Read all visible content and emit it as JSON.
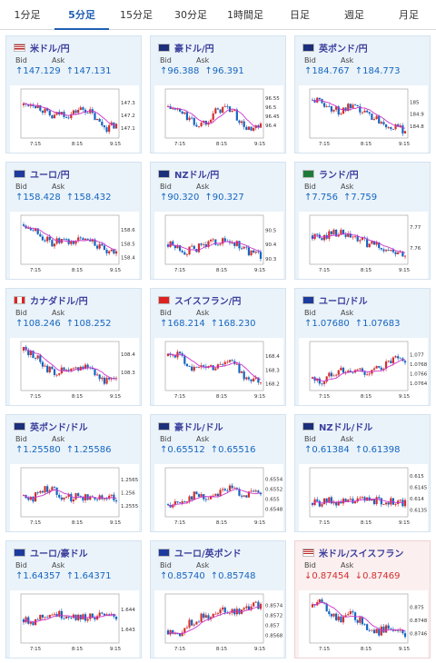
{
  "tabs": [
    "1分足",
    "5分足",
    "15分足",
    "30分足",
    "1時間足",
    "日足",
    "週足",
    "月足"
  ],
  "active_tab": 1,
  "labels": {
    "bid": "Bid",
    "ask": "Ask"
  },
  "colors": {
    "up": "#1565c0",
    "down": "#d32f2f",
    "candle_up": "#d32f2f",
    "candle_down": "#1565c0",
    "ma": "#cc33cc",
    "ma2": "#22aacc"
  },
  "x_ticks": [
    "7:15",
    "8:15",
    "9:15"
  ],
  "pairs": [
    {
      "name": "米ドル/円",
      "flag": "us-jp-flag",
      "dir": "up",
      "bid": "147.129",
      "ask": "147.131",
      "y_ticks": [
        "147.3",
        "147.2",
        "147.1"
      ],
      "y_range": [
        147.02,
        147.38
      ],
      "trend": [
        147.28,
        147.3,
        147.25,
        147.18,
        147.22,
        147.2,
        147.25,
        147.24,
        147.15,
        147.1,
        147.13
      ]
    },
    {
      "name": "豪ドル/円",
      "flag": "au-jp-flag",
      "dir": "up",
      "bid": "96.388",
      "ask": "96.391",
      "y_ticks": [
        "96.55",
        "96.5",
        "96.45",
        "96.4"
      ],
      "y_range": [
        96.33,
        96.58
      ],
      "trend": [
        96.5,
        96.48,
        96.45,
        96.4,
        96.42,
        96.47,
        96.5,
        96.48,
        96.4,
        96.37,
        96.39
      ]
    },
    {
      "name": "英ポンド/円",
      "flag": "gb-jp-flag",
      "dir": "up",
      "bid": "184.767",
      "ask": "184.773",
      "y_ticks": [
        "185",
        "184.9",
        "184.8"
      ],
      "y_range": [
        184.7,
        185.08
      ],
      "trend": [
        185.02,
        185.0,
        184.95,
        184.92,
        184.96,
        184.93,
        184.9,
        184.86,
        184.82,
        184.78,
        184.77
      ]
    },
    {
      "name": "ユーロ/円",
      "flag": "eu-jp-flag",
      "dir": "up",
      "bid": "158.428",
      "ask": "158.432",
      "y_ticks": [
        "158.6",
        "158.5",
        "158.4"
      ],
      "y_range": [
        158.35,
        158.68
      ],
      "trend": [
        158.64,
        158.62,
        158.55,
        158.5,
        158.52,
        158.5,
        158.53,
        158.55,
        158.48,
        158.43,
        158.43
      ]
    },
    {
      "name": "NZドル/円",
      "flag": "nz-jp-flag",
      "dir": "up",
      "bid": "90.320",
      "ask": "90.327",
      "y_ticks": [
        "90.5",
        "90.4",
        "90.3"
      ],
      "y_range": [
        90.26,
        90.58
      ],
      "trend": [
        90.4,
        90.38,
        90.35,
        90.37,
        90.4,
        90.42,
        90.42,
        90.41,
        90.38,
        90.33,
        90.32
      ]
    },
    {
      "name": "ランド/円",
      "flag": "za-jp-flag",
      "dir": "up",
      "bid": "7.756",
      "ask": "7.759",
      "y_ticks": [
        "7.77",
        "7.76"
      ],
      "y_range": [
        7.752,
        7.774
      ],
      "trend": [
        7.766,
        7.764,
        7.768,
        7.767,
        7.765,
        7.764,
        7.762,
        7.761,
        7.759,
        7.757,
        7.756
      ]
    },
    {
      "name": "カナダドル/円",
      "flag": "ca-jp-flag",
      "dir": "up",
      "bid": "108.246",
      "ask": "108.252",
      "y_ticks": [
        "108.4",
        "108.3"
      ],
      "y_range": [
        108.2,
        108.45
      ],
      "trend": [
        108.42,
        108.4,
        108.35,
        108.3,
        108.31,
        108.3,
        108.33,
        108.34,
        108.28,
        108.25,
        108.25
      ]
    },
    {
      "name": "スイスフラン/円",
      "flag": "ch-jp-flag",
      "dir": "up",
      "bid": "168.214",
      "ask": "168.230",
      "y_ticks": [
        "168.4",
        "168.3",
        "168.2"
      ],
      "y_range": [
        168.15,
        168.48
      ],
      "trend": [
        168.4,
        168.42,
        168.35,
        168.3,
        168.33,
        168.32,
        168.36,
        168.36,
        168.27,
        168.22,
        168.22
      ]
    },
    {
      "name": "ユーロ/ドル",
      "flag": "eu-us-flag",
      "dir": "up",
      "bid": "1.07680",
      "ask": "1.07683",
      "y_ticks": [
        "1.077",
        "1.0768",
        "1.0766",
        "1.0764"
      ],
      "y_range": [
        1.07625,
        1.0772
      ],
      "trend": [
        1.0765,
        1.0764,
        1.0766,
        1.0767,
        1.0766,
        1.0767,
        1.0766,
        1.0767,
        1.0768,
        1.0769,
        1.0768
      ]
    },
    {
      "name": "英ポンド/ドル",
      "flag": "gb-us-flag",
      "dir": "up",
      "bid": "1.25580",
      "ask": "1.25586",
      "y_ticks": [
        "1.2565",
        "1.256",
        "1.2555"
      ],
      "y_range": [
        1.2551,
        1.2568
      ],
      "trend": [
        1.2559,
        1.2558,
        1.2561,
        1.2562,
        1.2559,
        1.2558,
        1.2559,
        1.2558,
        1.2559,
        1.2558,
        1.2558
      ]
    },
    {
      "name": "豪ドル/ドル",
      "flag": "au-us-flag",
      "dir": "up",
      "bid": "0.65512",
      "ask": "0.65516",
      "y_ticks": [
        "0.6554",
        "0.6552",
        "0.655",
        "0.6548"
      ],
      "y_range": [
        0.65465,
        0.65555
      ],
      "trend": [
        0.6549,
        0.6549,
        0.655,
        0.6551,
        0.655,
        0.6551,
        0.6552,
        0.6552,
        0.6551,
        0.6551,
        0.6551
      ]
    },
    {
      "name": "NZドル/ドル",
      "flag": "nz-us-flag",
      "dir": "up",
      "bid": "0.61384",
      "ask": "0.61398",
      "y_ticks": [
        "0.615",
        "0.6145",
        "0.614",
        "0.6135"
      ],
      "y_range": [
        0.6132,
        0.6152
      ],
      "trend": [
        0.6138,
        0.6138,
        0.6139,
        0.6138,
        0.6139,
        0.6139,
        0.614,
        0.6139,
        0.6139,
        0.6138,
        0.6138
      ]
    },
    {
      "name": "ユーロ/豪ドル",
      "flag": "eu-au-flag",
      "dir": "up",
      "bid": "1.64357",
      "ask": "1.64371",
      "y_ticks": [
        "1.644",
        "1.643"
      ],
      "y_range": [
        1.6423,
        1.6446
      ],
      "trend": [
        1.6435,
        1.6434,
        1.6437,
        1.6438,
        1.6437,
        1.6437,
        1.6436,
        1.6436,
        1.6437,
        1.6436,
        1.6436
      ]
    },
    {
      "name": "ユーロ/英ポンド",
      "flag": "eu-gb-flag",
      "dir": "up",
      "bid": "0.85740",
      "ask": "0.85748",
      "y_ticks": [
        "0.8574",
        "0.8572",
        "0.857",
        "0.8568"
      ],
      "y_range": [
        0.85665,
        0.85755
      ],
      "trend": [
        0.8569,
        0.8568,
        0.857,
        0.8571,
        0.8572,
        0.8572,
        0.8573,
        0.8573,
        0.8573,
        0.8574,
        0.8574
      ]
    },
    {
      "name": "米ドル/スイスフラン",
      "flag": "us-ch-flag",
      "dir": "down",
      "bid": "0.87454",
      "ask": "0.87469",
      "y_ticks": [
        "0.875",
        "0.8748",
        "0.8746"
      ],
      "y_range": [
        0.87445,
        0.87515
      ],
      "trend": [
        0.875,
        0.8751,
        0.8749,
        0.8748,
        0.8749,
        0.8748,
        0.8747,
        0.8746,
        0.8747,
        0.8746,
        0.8746
      ]
    }
  ]
}
